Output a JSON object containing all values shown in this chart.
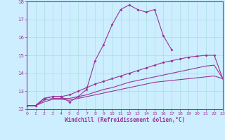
{
  "xlabel": "Windchill (Refroidissement éolien,°C)",
  "bg_color": "#cceeff",
  "line_color": "#993399",
  "grid_color": "#aadddd",
  "xlim": [
    0,
    23
  ],
  "ylim": [
    12,
    18
  ],
  "yticks": [
    12,
    13,
    14,
    15,
    16,
    17,
    18
  ],
  "xticks": [
    0,
    1,
    2,
    3,
    4,
    5,
    6,
    7,
    8,
    9,
    10,
    11,
    12,
    13,
    14,
    15,
    16,
    17,
    18,
    19,
    20,
    21,
    22,
    23
  ],
  "series1_x": [
    0,
    1,
    2,
    3,
    4,
    5,
    6,
    7,
    8,
    9,
    10,
    11,
    12,
    13,
    14,
    15,
    16,
    17
  ],
  "series1_y": [
    12.2,
    12.2,
    12.6,
    12.7,
    12.7,
    12.4,
    12.7,
    13.1,
    14.7,
    15.6,
    16.7,
    17.55,
    17.8,
    17.55,
    17.4,
    17.55,
    16.1,
    15.3
  ],
  "series2_x": [
    0,
    1,
    2,
    3,
    4,
    5,
    6,
    7,
    8,
    9,
    10,
    11,
    12,
    13,
    14,
    15,
    16,
    17,
    18,
    19,
    20,
    21,
    22,
    23
  ],
  "series2_y": [
    12.2,
    12.2,
    12.6,
    12.7,
    12.7,
    12.8,
    13.0,
    13.2,
    13.4,
    13.55,
    13.7,
    13.85,
    14.0,
    14.15,
    14.3,
    14.45,
    14.6,
    14.7,
    14.8,
    14.9,
    14.95,
    15.0,
    15.0,
    13.7
  ],
  "series3_x": [
    0,
    1,
    2,
    3,
    4,
    5,
    6,
    7,
    8,
    9,
    10,
    11,
    12,
    13,
    14,
    15,
    16,
    17,
    18,
    19,
    20,
    21,
    22,
    23
  ],
  "series3_y": [
    12.2,
    12.2,
    12.5,
    12.6,
    12.6,
    12.6,
    12.7,
    12.8,
    12.95,
    13.1,
    13.2,
    13.35,
    13.5,
    13.6,
    13.7,
    13.8,
    13.9,
    14.0,
    14.1,
    14.2,
    14.3,
    14.4,
    14.45,
    13.7
  ],
  "series4_x": [
    0,
    1,
    2,
    3,
    4,
    5,
    6,
    7,
    8,
    9,
    10,
    11,
    12,
    13,
    14,
    15,
    16,
    17,
    18,
    19,
    20,
    21,
    22,
    23
  ],
  "series4_y": [
    12.2,
    12.2,
    12.4,
    12.55,
    12.55,
    12.5,
    12.6,
    12.7,
    12.8,
    12.9,
    13.0,
    13.1,
    13.2,
    13.3,
    13.4,
    13.5,
    13.55,
    13.6,
    13.65,
    13.7,
    13.75,
    13.8,
    13.85,
    13.7
  ]
}
